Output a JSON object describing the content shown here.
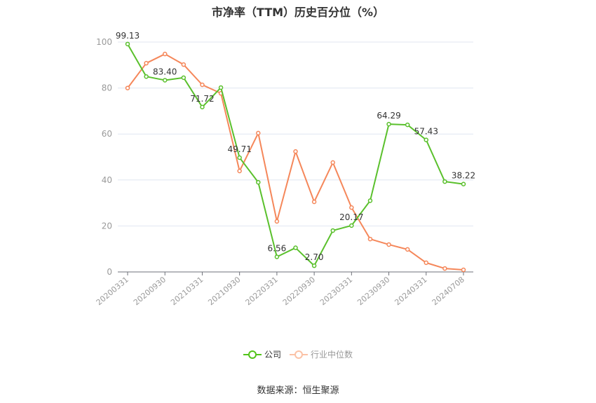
{
  "title": "市净率（TTM）历史百分位（%）",
  "source": "数据来源：恒生聚源",
  "legend": [
    {
      "label": "公司",
      "color": "#52c41a"
    },
    {
      "label": "行业中位数",
      "color": "#fa8c5a"
    }
  ],
  "colors": {
    "company": "#5ac02c",
    "industry": "#f5875a",
    "grid": "#e0e6f1",
    "axis": "#6e7079",
    "tick_label": "#9a9a9a",
    "data_label": "#333333"
  },
  "chart_data": {
    "type": "line",
    "title": "市净率（TTM）历史百分位（%）",
    "xlabel": "",
    "ylabel": "",
    "ylim": [
      0,
      100
    ],
    "yticks": [
      0,
      20,
      40,
      60,
      80,
      100
    ],
    "grid": true,
    "legend_position": "bottom",
    "x": [
      "20200331",
      "20200630",
      "20200930",
      "20201231",
      "20210331",
      "20210630",
      "20210930",
      "20211231",
      "20220331",
      "20220630",
      "20220930",
      "20221231",
      "20230331",
      "20230630",
      "20230930",
      "20231231",
      "20240331",
      "20240630",
      "20240708"
    ],
    "x_tick_labels": [
      "20200331",
      "20200930",
      "20210331",
      "20210930",
      "20220331",
      "20220930",
      "20230331",
      "20230930",
      "20240331",
      "20240708"
    ],
    "series": [
      {
        "name": "公司",
        "values": [
          99.13,
          85.0,
          83.4,
          84.5,
          71.72,
          80.2,
          49.71,
          39.0,
          6.56,
          10.5,
          2.7,
          18.0,
          20.17,
          31.0,
          64.29,
          64.0,
          57.43,
          39.3,
          38.22
        ],
        "labels": {
          "0": "99.13",
          "2": "83.40",
          "4": "71.72",
          "6": "49.71",
          "8": "6.56",
          "10": "2.70",
          "12": "20.17",
          "14": "64.29",
          "16": "57.43",
          "18": "38.22"
        }
      },
      {
        "name": "行业中位数",
        "values": [
          80.0,
          90.8,
          94.8,
          90.2,
          81.4,
          77.7,
          43.9,
          60.4,
          22.0,
          52.4,
          30.5,
          47.6,
          28.0,
          14.3,
          11.9,
          9.8,
          4.0,
          1.5,
          0.9
        ]
      }
    ]
  }
}
